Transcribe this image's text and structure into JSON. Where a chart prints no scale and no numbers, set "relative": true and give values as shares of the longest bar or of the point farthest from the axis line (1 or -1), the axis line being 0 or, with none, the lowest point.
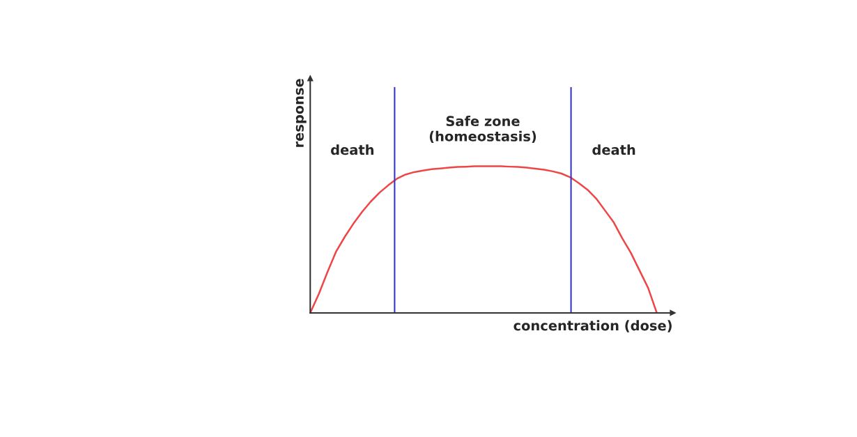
{
  "chart_data": {
    "type": "line",
    "relative": true,
    "xlabel": "concentration (dose)",
    "ylabel": "response",
    "legend": false,
    "marker": "none",
    "line_style": "solid",
    "categories": [
      null,
      null,
      null,
      null,
      null,
      null,
      null,
      null,
      null,
      null,
      null,
      null,
      null,
      null,
      null,
      null,
      null,
      null,
      null,
      null,
      null,
      null,
      null,
      null,
      null,
      null,
      null,
      null,
      null,
      null,
      null,
      null,
      null,
      null,
      null,
      null,
      null,
      null,
      null,
      null,
      null
    ],
    "series": [
      {
        "color": "#ee4646",
        "values": [
          0,
          0.13,
          0.28,
          0.42,
          0.52,
          0.61,
          0.69,
          0.76,
          0.82,
          0.87,
          0.915,
          0.943,
          0.96,
          0.97,
          0.98,
          0.985,
          0.99,
          0.995,
          0.997,
          1,
          1,
          1,
          1,
          0.997,
          0.995,
          0.99,
          0.983,
          0.976,
          0.965,
          0.95,
          0.925,
          0.885,
          0.84,
          0.78,
          0.7,
          0.62,
          0.51,
          0.41,
          0.29,
          0.17,
          0
        ]
      }
    ],
    "annotations": [
      "death",
      "Safe zone\n(homeostasis)",
      "death"
    ]
  }
}
